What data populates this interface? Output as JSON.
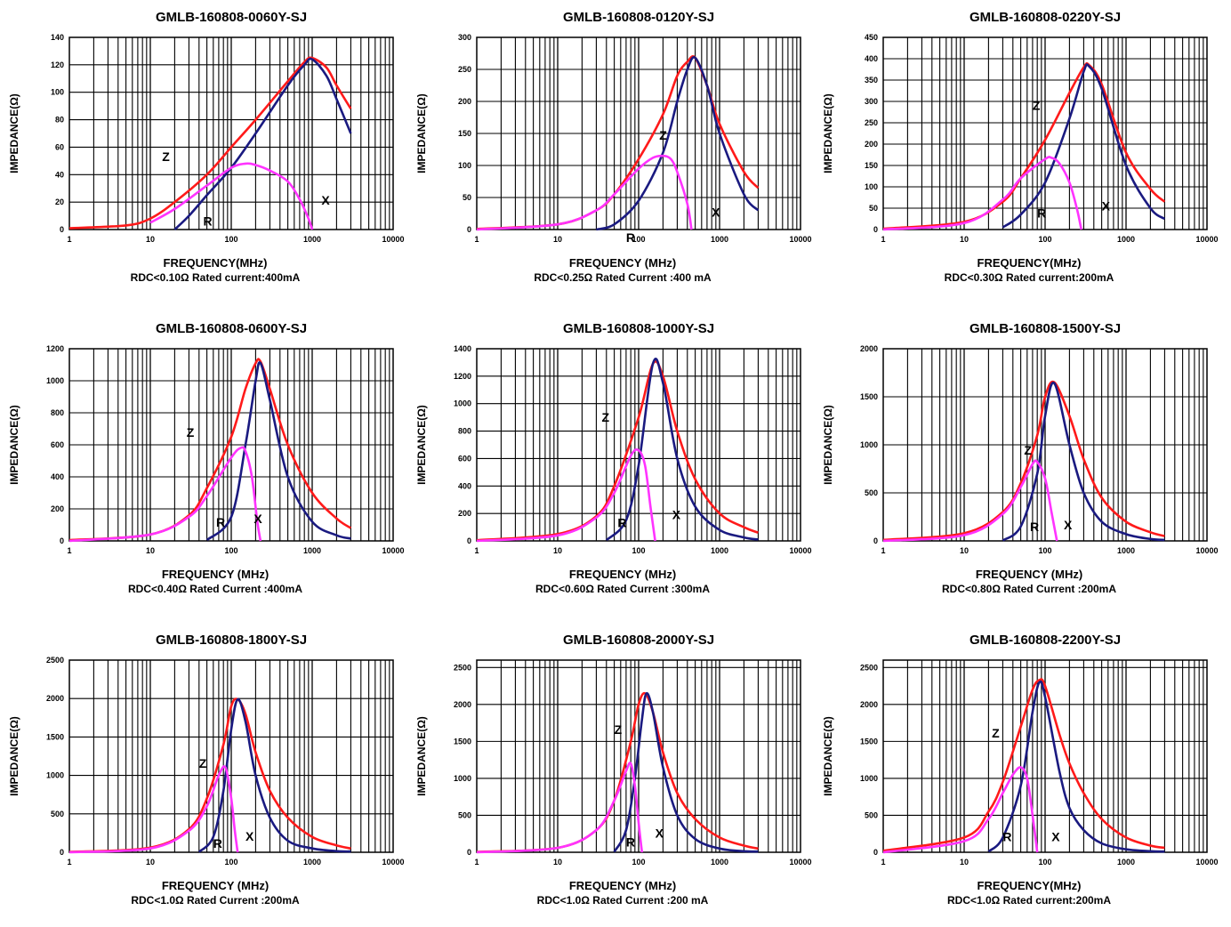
{
  "page": {
    "xlabel": "FREQUENCY(MHz)",
    "ylabel": "IMPEDANCE(Ω)",
    "colors": {
      "Z": "#ff1a1a",
      "X": "#1a1a80",
      "R": "#ff33ff",
      "grid": "#000000"
    }
  },
  "chart_data": [
    {
      "type": "line",
      "title": "GMLB-160808-0060Y-SJ",
      "xlabel": "FREQUENCY(MHz)",
      "ylabel": "IMPEDANCE(Ω)",
      "note": "RDC<0.10Ω  Rated current:400mA",
      "xscale": "log",
      "xlim": [
        1,
        10000
      ],
      "ylim": [
        0,
        140
      ],
      "yticks": [
        "0",
        "20",
        "40",
        "60",
        "80",
        "100",
        "120",
        "140"
      ],
      "xticks": [
        "1",
        "10",
        "100",
        "1000",
        "10000"
      ],
      "grid": true,
      "curve_labels": [
        "Z",
        "X",
        "R"
      ],
      "series": [
        {
          "name": "Z",
          "x": [
            1,
            5,
            10,
            20,
            50,
            100,
            200,
            500,
            800,
            1000,
            1500,
            2000,
            3000
          ],
          "y": [
            1,
            3,
            8,
            20,
            40,
            60,
            80,
            108,
            122,
            125,
            118,
            105,
            88
          ]
        },
        {
          "name": "X",
          "x": [
            20,
            30,
            50,
            100,
            200,
            500,
            800,
            1000,
            1500,
            2000,
            3000
          ],
          "y": [
            0,
            10,
            25,
            45,
            70,
            105,
            120,
            124,
            112,
            95,
            70
          ]
        },
        {
          "name": "R",
          "x": [
            10,
            20,
            50,
            100,
            150,
            200,
            300,
            500,
            700,
            900,
            1000
          ],
          "y": [
            5,
            15,
            32,
            45,
            48,
            47,
            43,
            35,
            22,
            8,
            0
          ]
        }
      ]
    },
    {
      "type": "line",
      "title": "GMLB-160808-0120Y-SJ",
      "xlabel": "FREQUENCY (MHz)",
      "ylabel": "IMPEDANCE(Ω)",
      "note": "RDC<0.25Ω Rated Current :400 mA",
      "xscale": "log",
      "xlim": [
        1,
        10000
      ],
      "ylim": [
        0,
        300
      ],
      "yticks": [
        "0",
        "50",
        "100",
        "150",
        "200",
        "250",
        "300"
      ],
      "xticks": [
        "1",
        "10",
        "100",
        "1000",
        "10000"
      ],
      "grid": true,
      "curve_labels": [
        "Z",
        "X",
        "R"
      ],
      "series": [
        {
          "name": "Z",
          "x": [
            1,
            10,
            30,
            50,
            100,
            200,
            300,
            400,
            500,
            700,
            1000,
            2000,
            3000
          ],
          "y": [
            1,
            8,
            30,
            55,
            110,
            180,
            240,
            262,
            268,
            225,
            165,
            90,
            65
          ]
        },
        {
          "name": "X",
          "x": [
            30,
            50,
            100,
            200,
            300,
            400,
            500,
            700,
            1000,
            2000,
            3000
          ],
          "y": [
            0,
            8,
            45,
            120,
            200,
            250,
            268,
            225,
            150,
            55,
            30
          ]
        },
        {
          "name": "R",
          "x": [
            1,
            10,
            30,
            50,
            100,
            150,
            200,
            250,
            300,
            400,
            450
          ],
          "y": [
            0,
            8,
            30,
            55,
            95,
            112,
            115,
            110,
            90,
            40,
            0
          ]
        }
      ]
    },
    {
      "type": "line",
      "title": "GMLB-160808-0220Y-SJ",
      "xlabel": "FREQUENCY(MHz)",
      "ylabel": "IMPEDANCE(Ω)",
      "note": "RDC<0.30Ω  Rated current:200mA",
      "xscale": "log",
      "xlim": [
        1,
        10000
      ],
      "ylim": [
        0,
        450
      ],
      "yticks": [
        "0",
        "50",
        "100",
        "150",
        "200",
        "250",
        "300",
        "350",
        "400",
        "450"
      ],
      "xticks": [
        "1",
        "10",
        "100",
        "1000",
        "10000"
      ],
      "grid": true,
      "curve_labels": [
        "Z",
        "X",
        "R"
      ],
      "series": [
        {
          "name": "Z",
          "x": [
            1,
            10,
            30,
            50,
            100,
            200,
            300,
            350,
            500,
            1000,
            2000,
            3000
          ],
          "y": [
            2,
            18,
            65,
            120,
            210,
            320,
            380,
            385,
            340,
            180,
            95,
            65
          ]
        },
        {
          "name": "X",
          "x": [
            30,
            50,
            100,
            200,
            300,
            350,
            500,
            1000,
            2000,
            3000
          ],
          "y": [
            5,
            35,
            110,
            260,
            370,
            382,
            330,
            150,
            50,
            25
          ]
        },
        {
          "name": "R",
          "x": [
            1,
            10,
            30,
            50,
            100,
            120,
            150,
            200,
            250,
            280
          ],
          "y": [
            0,
            15,
            70,
            120,
            165,
            168,
            155,
            110,
            45,
            0
          ]
        }
      ]
    },
    {
      "type": "line",
      "title": "GMLB-160808-0600Y-SJ",
      "xlabel": "FREQUENCY (MHz)",
      "ylabel": "IMPEDANCE(Ω)",
      "note": "RDC<0.40Ω Rated Current :400mA",
      "xscale": "log",
      "xlim": [
        1,
        10000
      ],
      "ylim": [
        0,
        1200
      ],
      "yticks": [
        "0",
        "200",
        "400",
        "600",
        "800",
        "1000",
        "1200"
      ],
      "xticks": [
        "1",
        "10",
        "100",
        "1000",
        "10000"
      ],
      "grid": true,
      "curve_labels": [
        "Z",
        "R",
        "X"
      ],
      "series": [
        {
          "name": "Z",
          "x": [
            1,
            10,
            30,
            50,
            100,
            150,
            200,
            230,
            300,
            500,
            1000,
            2000,
            3000
          ],
          "y": [
            5,
            40,
            160,
            330,
            650,
            950,
            1110,
            1120,
            950,
            600,
            300,
            140,
            80
          ]
        },
        {
          "name": "X",
          "x": [
            50,
            100,
            150,
            200,
            230,
            300,
            500,
            1000,
            2000,
            3000
          ],
          "y": [
            5,
            150,
            600,
            1000,
            1110,
            880,
            400,
            120,
            35,
            15
          ]
        },
        {
          "name": "R",
          "x": [
            1,
            10,
            30,
            50,
            100,
            130,
            150,
            180,
            210,
            230
          ],
          "y": [
            0,
            40,
            150,
            280,
            520,
            580,
            560,
            400,
            120,
            0
          ]
        }
      ]
    },
    {
      "type": "line",
      "title": "GMLB-160808-1000Y-SJ",
      "xlabel": "FREQUENCY (MHz)",
      "ylabel": "IMPEDANCE(Ω)",
      "note": "RDC<0.60Ω Rated Current :300mA",
      "xscale": "log",
      "xlim": [
        1,
        10000
      ],
      "ylim": [
        0,
        1400
      ],
      "yticks": [
        "0",
        "200",
        "400",
        "600",
        "800",
        "1000",
        "1200",
        "1400"
      ],
      "xticks": [
        "1",
        "10",
        "100",
        "1000",
        "10000"
      ],
      "grid": true,
      "curve_labels": [
        "Z",
        "R",
        "X"
      ],
      "series": [
        {
          "name": "Z",
          "x": [
            1,
            10,
            30,
            50,
            100,
            150,
            200,
            300,
            500,
            1000,
            2000,
            3000
          ],
          "y": [
            5,
            50,
            180,
            400,
            900,
            1290,
            1200,
            800,
            450,
            200,
            100,
            60
          ]
        },
        {
          "name": "X",
          "x": [
            40,
            70,
            100,
            150,
            200,
            300,
            500,
            1000,
            2000,
            3000
          ],
          "y": [
            5,
            150,
            550,
            1290,
            1150,
            600,
            250,
            80,
            25,
            10
          ]
        },
        {
          "name": "R",
          "x": [
            1,
            10,
            30,
            50,
            80,
            100,
            120,
            140,
            160
          ],
          "y": [
            0,
            40,
            170,
            350,
            620,
            660,
            550,
            250,
            0
          ]
        }
      ]
    },
    {
      "type": "line",
      "title": "GMLB-160808-1500Y-SJ",
      "xlabel": "FREQUENCY (MHz)",
      "ylabel": "IMPEDANCE(Ω)",
      "note": "RDC<0.80Ω Rated Current :200mA",
      "xscale": "log",
      "xlim": [
        1,
        10000
      ],
      "ylim": [
        0,
        2000
      ],
      "yticks": [
        "0",
        "500",
        "1000",
        "1500",
        "2000"
      ],
      "xticks": [
        "1",
        "10",
        "100",
        "1000",
        "10000"
      ],
      "grid": true,
      "curve_labels": [
        "Z",
        "R",
        "X"
      ],
      "series": [
        {
          "name": "Z",
          "x": [
            1,
            10,
            30,
            50,
            80,
            100,
            130,
            200,
            300,
            500,
            1000,
            2000,
            3000
          ],
          "y": [
            10,
            80,
            300,
            600,
            1100,
            1500,
            1650,
            1300,
            850,
            450,
            200,
            90,
            50
          ]
        },
        {
          "name": "X",
          "x": [
            30,
            50,
            80,
            100,
            130,
            200,
            300,
            500,
            1000,
            2000,
            3000
          ],
          "y": [
            5,
            150,
            700,
            1300,
            1640,
            1000,
            500,
            200,
            70,
            20,
            10
          ]
        },
        {
          "name": "R",
          "x": [
            1,
            10,
            30,
            50,
            70,
            80,
            100,
            120,
            140
          ],
          "y": [
            0,
            60,
            280,
            560,
            800,
            820,
            650,
            300,
            0
          ]
        }
      ]
    },
    {
      "type": "line",
      "title": "GMLB-160808-1800Y-SJ",
      "xlabel": "FREQUENCY (MHz)",
      "ylabel": "IMPEDANCE(Ω)",
      "note": "RDC<1.0Ω Rated Current :200mA",
      "xscale": "log",
      "xlim": [
        1,
        10000
      ],
      "ylim": [
        0,
        2500
      ],
      "yticks": [
        "0",
        "500",
        "1000",
        "1500",
        "2000",
        "2500"
      ],
      "xticks": [
        "1",
        "10",
        "100",
        "1000",
        "10000"
      ],
      "grid": true,
      "curve_labels": [
        "Z",
        "R",
        "X"
      ],
      "series": [
        {
          "name": "Z",
          "x": [
            1,
            10,
            30,
            50,
            80,
            100,
            120,
            150,
            200,
            300,
            500,
            1000,
            2000,
            3000
          ],
          "y": [
            5,
            60,
            300,
            700,
            1400,
            1900,
            1990,
            1800,
            1300,
            800,
            450,
            200,
            90,
            50
          ]
        },
        {
          "name": "X",
          "x": [
            40,
            60,
            80,
            100,
            120,
            150,
            200,
            300,
            500,
            1000,
            2000,
            3000
          ],
          "y": [
            5,
            200,
            800,
            1600,
            1990,
            1700,
            1000,
            450,
            150,
            50,
            15,
            10
          ]
        },
        {
          "name": "R",
          "x": [
            1,
            10,
            30,
            50,
            70,
            85,
            100,
            110,
            120
          ],
          "y": [
            0,
            50,
            280,
            600,
            1000,
            1100,
            700,
            300,
            0
          ]
        }
      ]
    },
    {
      "type": "line",
      "title": "GMLB-160808-2000Y-SJ",
      "xlabel": "FREQUENCY (MHz)",
      "ylabel": "IMPEDANCE(Ω)",
      "note": "RDC<1.0Ω Rated Current :200 mA",
      "xscale": "log",
      "xlim": [
        1,
        10000
      ],
      "ylim": [
        0,
        2600
      ],
      "yticks": [
        "0",
        "500",
        "1000",
        "1500",
        "2000",
        "2500"
      ],
      "xticks": [
        "1",
        "10",
        "100",
        "1000",
        "10000"
      ],
      "grid": true,
      "curve_labels": [
        "Z",
        "R",
        "X"
      ],
      "series": [
        {
          "name": "Z",
          "x": [
            1,
            10,
            30,
            50,
            80,
            100,
            120,
            150,
            200,
            300,
            500,
            1000,
            2000,
            3000
          ],
          "y": [
            5,
            60,
            300,
            700,
            1500,
            2000,
            2150,
            1900,
            1350,
            800,
            450,
            200,
            90,
            50
          ]
        },
        {
          "name": "X",
          "x": [
            50,
            70,
            90,
            110,
            125,
            150,
            200,
            300,
            500,
            1000,
            2000,
            3000
          ],
          "y": [
            5,
            300,
            1000,
            1800,
            2150,
            1900,
            1150,
            500,
            180,
            50,
            15,
            10
          ]
        },
        {
          "name": "R",
          "x": [
            1,
            10,
            30,
            50,
            70,
            80,
            90,
            100,
            110
          ],
          "y": [
            0,
            60,
            300,
            700,
            1100,
            1200,
            900,
            400,
            0
          ]
        }
      ]
    },
    {
      "type": "line",
      "title": "GMLB-160808-2200Y-SJ",
      "xlabel": "FREQUENCY(MHz)",
      "ylabel": "IMPEDANCE(Ω)",
      "note": "RDC<1.0Ω  Rated current:200mA",
      "xscale": "log",
      "xlim": [
        1,
        10000
      ],
      "ylim": [
        0,
        2600
      ],
      "yticks": [
        "0",
        "500",
        "1000",
        "1500",
        "2000",
        "2500"
      ],
      "xticks": [
        "1",
        "10",
        "100",
        "1000",
        "10000"
      ],
      "grid": true,
      "curve_labels": [
        "Z",
        "R",
        "X"
      ],
      "series": [
        {
          "name": "Z",
          "x": [
            1,
            10,
            20,
            30,
            50,
            70,
            85,
            100,
            150,
            200,
            300,
            500,
            1000,
            2000,
            3000
          ],
          "y": [
            20,
            200,
            550,
            950,
            1700,
            2200,
            2330,
            2250,
            1600,
            1200,
            800,
            450,
            200,
            90,
            60
          ]
        },
        {
          "name": "X",
          "x": [
            20,
            30,
            50,
            70,
            85,
            100,
            150,
            200,
            300,
            500,
            1000,
            2000,
            3000
          ],
          "y": [
            10,
            200,
            900,
            1900,
            2300,
            2100,
            1100,
            600,
            300,
            120,
            40,
            15,
            10
          ]
        },
        {
          "name": "R",
          "x": [
            1,
            10,
            20,
            30,
            40,
            50,
            60,
            70,
            80
          ],
          "y": [
            0,
            150,
            450,
            800,
            1050,
            1150,
            1000,
            500,
            0
          ]
        }
      ]
    }
  ]
}
